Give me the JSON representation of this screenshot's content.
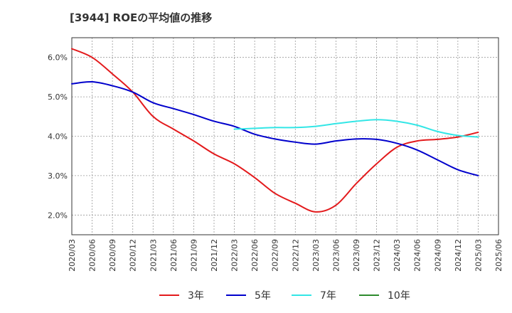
{
  "chart_data": {
    "type": "line",
    "title": "[3944]  ROEの平均値の推移",
    "xlabel": "",
    "ylabel": "",
    "ylim": [
      1.5,
      6.5
    ],
    "y_ticks": [
      2.0,
      3.0,
      4.0,
      5.0,
      6.0
    ],
    "y_tick_labels": [
      "2.0%",
      "3.0%",
      "4.0%",
      "5.0%",
      "6.0%"
    ],
    "x_tick_labels": [
      "2020/03",
      "2020/06",
      "2020/09",
      "2020/12",
      "2021/03",
      "2021/06",
      "2021/09",
      "2021/12",
      "2022/03",
      "2022/06",
      "2022/09",
      "2022/12",
      "2023/03",
      "2023/06",
      "2023/09",
      "2023/12",
      "2024/03",
      "2024/06",
      "2024/09",
      "2024/12",
      "2025/03",
      "2025/06"
    ],
    "grid": true,
    "legend_position": "bottom",
    "series": [
      {
        "name": "3年",
        "color": "#e31a1c",
        "values": [
          6.22,
          6.0,
          5.58,
          5.12,
          4.5,
          4.18,
          3.88,
          3.55,
          3.3,
          2.95,
          2.55,
          2.3,
          2.08,
          2.25,
          2.8,
          3.3,
          3.72,
          3.88,
          3.92,
          3.98,
          4.1,
          null
        ]
      },
      {
        "name": "5年",
        "color": "#0000cc",
        "values": [
          5.33,
          5.38,
          5.28,
          5.12,
          4.85,
          4.7,
          4.55,
          4.38,
          4.25,
          4.05,
          3.93,
          3.85,
          3.8,
          3.88,
          3.93,
          3.92,
          3.82,
          3.65,
          3.4,
          3.15,
          3.0,
          null
        ]
      },
      {
        "name": "7年",
        "color": "#33e6e6",
        "values": [
          null,
          null,
          null,
          null,
          null,
          null,
          null,
          null,
          4.18,
          4.2,
          4.22,
          4.22,
          4.25,
          4.32,
          4.38,
          4.42,
          4.38,
          4.28,
          4.12,
          4.02,
          3.98,
          null
        ]
      },
      {
        "name": "10年",
        "color": "#2e8b2e",
        "values": [
          null,
          null,
          null,
          null,
          null,
          null,
          null,
          null,
          null,
          null,
          null,
          null,
          null,
          null,
          null,
          null,
          null,
          null,
          null,
          null,
          null,
          null
        ]
      }
    ]
  }
}
